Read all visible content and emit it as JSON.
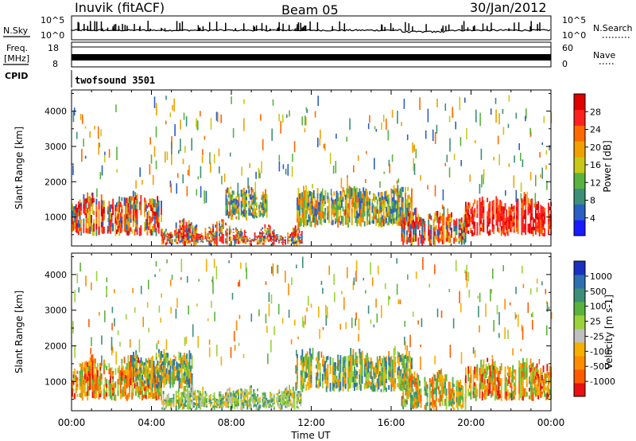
{
  "header": {
    "station": "Inuvik (fitACF)",
    "beam": "Beam 05",
    "date": "30/Jan/2012"
  },
  "noise_panel": {
    "left_label": "N.Sky",
    "right_label": "N.Search",
    "left_ticks": [
      "10^5",
      "10^0"
    ],
    "right_ticks": [
      "10^5",
      "10^0"
    ]
  },
  "freq_panel": {
    "left_label_top": "Freq.",
    "left_label_unit": "[MHz]",
    "left_ticks": [
      "18",
      "8"
    ],
    "right_label": "Nave",
    "right_ticks": [
      "60",
      "0"
    ]
  },
  "cpid_panel": {
    "label": "CPID",
    "value": "twofsound 3501"
  },
  "chart_data": [
    {
      "type": "heatmap",
      "title": "",
      "quantity": "Power",
      "ylabel": "Slant Range [km]",
      "xlabel": "Time UT",
      "x_ticks": [
        "00:00",
        "04:00",
        "08:00",
        "12:00",
        "16:00",
        "20:00",
        "00:00"
      ],
      "y_ticks": [
        1000,
        2000,
        3000,
        4000
      ],
      "ylim": [
        180,
        4600
      ],
      "colorbar": {
        "label": "Power [dB]",
        "ticks": [
          4,
          8,
          12,
          16,
          20,
          24,
          28
        ],
        "colors": [
          "#1a1aff",
          "#2a5fc4",
          "#3d8f78",
          "#5ab33e",
          "#c8c818",
          "#f0a000",
          "#ff6a00",
          "#ff2020",
          "#e00000"
        ]
      },
      "bands": [
        {
          "t": [
            0.0,
            4.5
          ],
          "range": [
            450,
            1500
          ],
          "level": "high"
        },
        {
          "t": [
            4.5,
            8.5
          ],
          "range": [
            180,
            700
          ],
          "level": "high"
        },
        {
          "t": [
            7.7,
            9.8
          ],
          "range": [
            900,
            1700
          ],
          "level": "mid"
        },
        {
          "t": [
            8.5,
            11.5
          ],
          "range": [
            180,
            550
          ],
          "level": "high"
        },
        {
          "t": [
            11.2,
            17.0
          ],
          "range": [
            700,
            1700
          ],
          "level": "mid"
        },
        {
          "t": [
            16.5,
            19.7
          ],
          "range": [
            180,
            1100
          ],
          "level": "high"
        },
        {
          "t": [
            19.7,
            24.0
          ],
          "range": [
            450,
            1450
          ],
          "level": "max"
        }
      ]
    },
    {
      "type": "heatmap",
      "title": "",
      "quantity": "Velocity",
      "ylabel": "Slant Range [km]",
      "xlabel": "Time UT",
      "x_ticks": [
        "00:00",
        "04:00",
        "08:00",
        "12:00",
        "16:00",
        "20:00",
        "00:00"
      ],
      "y_ticks": [
        1000,
        2000,
        3000,
        4000
      ],
      "ylim": [
        180,
        4600
      ],
      "colorbar": {
        "label": "Velocity [m s-1]",
        "ticks": [
          1000,
          500,
          100,
          25,
          -25,
          -100,
          -500,
          -1000
        ],
        "colors": [
          "#1a30c0",
          "#2e6fb0",
          "#3d8f78",
          "#5ab33e",
          "#9ad33a",
          "#c0c0c0",
          "#f5b000",
          "#ff8c00",
          "#ff5a00",
          "#e81010"
        ]
      },
      "bands": [
        {
          "t": [
            0.0,
            4.5
          ],
          "range": [
            450,
            1500
          ],
          "level": "negative"
        },
        {
          "t": [
            3.0,
            6.0
          ],
          "range": [
            800,
            1700
          ],
          "level": "positive"
        },
        {
          "t": [
            4.5,
            11.5
          ],
          "range": [
            180,
            700
          ],
          "level": "near-zero"
        },
        {
          "t": [
            11.2,
            17.0
          ],
          "range": [
            700,
            1700
          ],
          "level": "positive"
        },
        {
          "t": [
            16.5,
            19.7
          ],
          "range": [
            180,
            1100
          ],
          "level": "mixed"
        },
        {
          "t": [
            19.7,
            24.0
          ],
          "range": [
            450,
            1450
          ],
          "level": "negative"
        }
      ]
    }
  ]
}
